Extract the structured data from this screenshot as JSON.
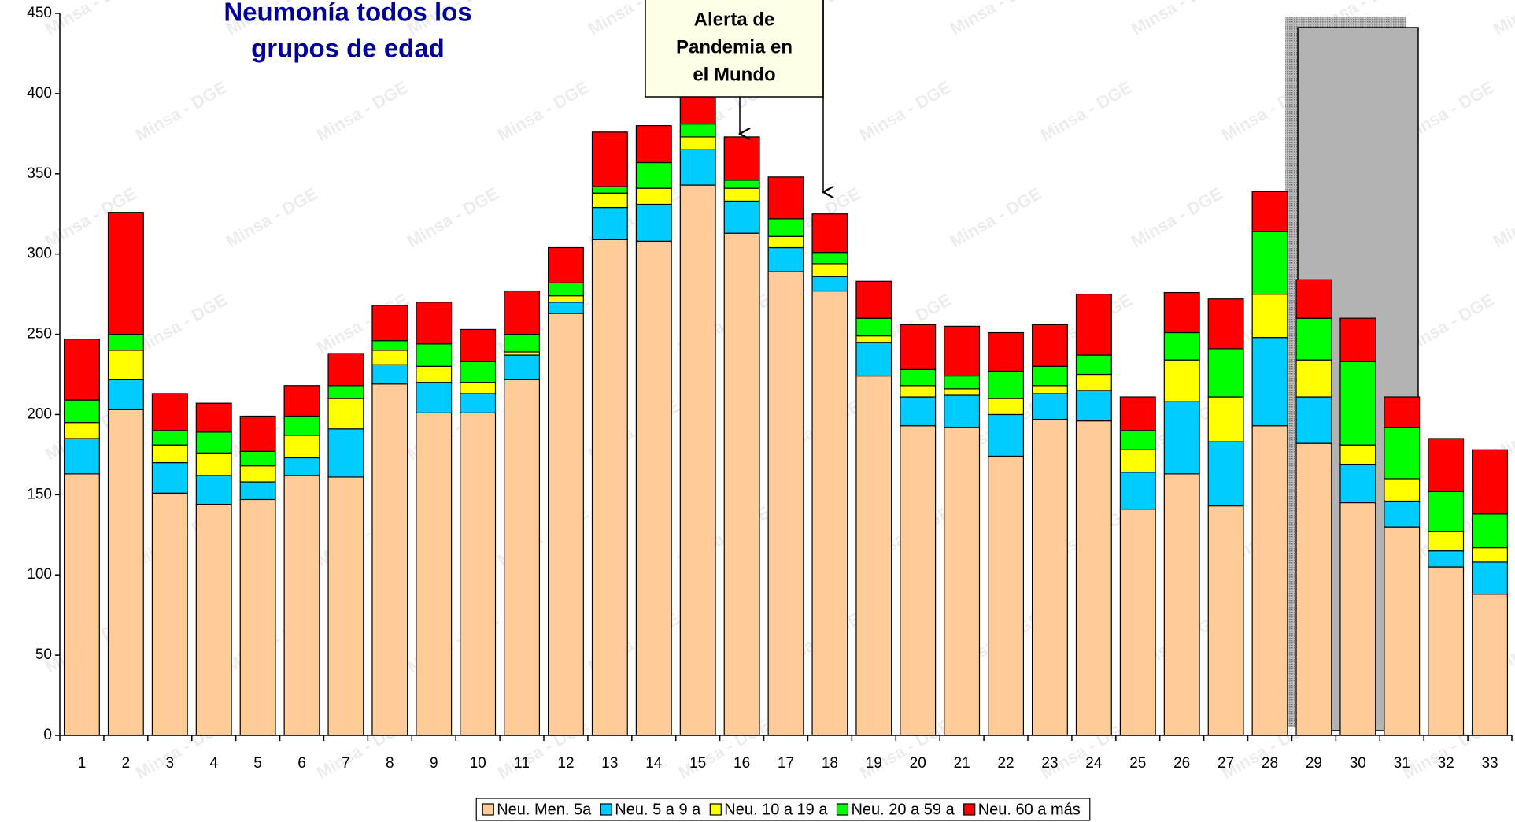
{
  "chart_data": {
    "type": "stacked_bar",
    "title": [
      "Neumonía todos los",
      "grupos de edad"
    ],
    "annotation": [
      "Alerta de",
      "Pandemia en",
      "el Mundo"
    ],
    "watermark": "Minsa - DGE",
    "categories": [
      "1",
      "2",
      "3",
      "4",
      "5",
      "6",
      "7",
      "8",
      "9",
      "10",
      "11",
      "12",
      "13",
      "14",
      "15",
      "16",
      "17",
      "18",
      "19",
      "20",
      "21",
      "22",
      "23",
      "24",
      "25",
      "26",
      "27",
      "28",
      "29",
      "30",
      "31",
      "32",
      "33"
    ],
    "series": [
      {
        "name": "Neu. Men. 5a",
        "color": "#FFCC99",
        "values": [
          163,
          203,
          151,
          144,
          147,
          162,
          161,
          219,
          201,
          201,
          222,
          263,
          309,
          308,
          343,
          313,
          289,
          277,
          224,
          193,
          192,
          174,
          197,
          196,
          141,
          163,
          143,
          193,
          182,
          145,
          130,
          105,
          88
        ]
      },
      {
        "name": "Neu. 5 a 9 a",
        "color": "#00CCFF",
        "values": [
          22,
          19,
          19,
          18,
          11,
          11,
          30,
          12,
          19,
          12,
          15,
          7,
          20,
          23,
          22,
          20,
          15,
          9,
          21,
          18,
          20,
          26,
          16,
          19,
          23,
          45,
          40,
          55,
          29,
          24,
          16,
          10,
          20
        ]
      },
      {
        "name": "Neu. 10 a 19 a",
        "color": "#FFFF00",
        "values": [
          10,
          18,
          11,
          14,
          10,
          14,
          19,
          9,
          10,
          7,
          2,
          4,
          9,
          10,
          8,
          8,
          7,
          8,
          4,
          7,
          4,
          10,
          5,
          10,
          14,
          26,
          28,
          27,
          23,
          12,
          14,
          12,
          9
        ]
      },
      {
        "name": "Neu. 20 a 59 a",
        "color": "#00FF00",
        "values": [
          14,
          10,
          9,
          13,
          9,
          12,
          8,
          6,
          14,
          13,
          11,
          8,
          4,
          16,
          8,
          5,
          11,
          7,
          11,
          10,
          8,
          17,
          12,
          12,
          12,
          17,
          30,
          39,
          26,
          52,
          32,
          25,
          21
        ]
      },
      {
        "name": "Neu. 60 a más",
        "color": "#FF0000",
        "values": [
          38,
          76,
          23,
          18,
          22,
          19,
          20,
          22,
          26,
          20,
          27,
          22,
          34,
          23,
          19,
          27,
          26,
          24,
          23,
          28,
          31,
          24,
          26,
          38,
          21,
          25,
          31,
          25,
          24,
          27,
          19,
          33,
          40
        ]
      }
    ],
    "ylim": [
      0,
      450
    ],
    "yticks": [
      0,
      50,
      100,
      150,
      200,
      250,
      300,
      350,
      400,
      450
    ],
    "grid": false,
    "legend": "bottom"
  }
}
